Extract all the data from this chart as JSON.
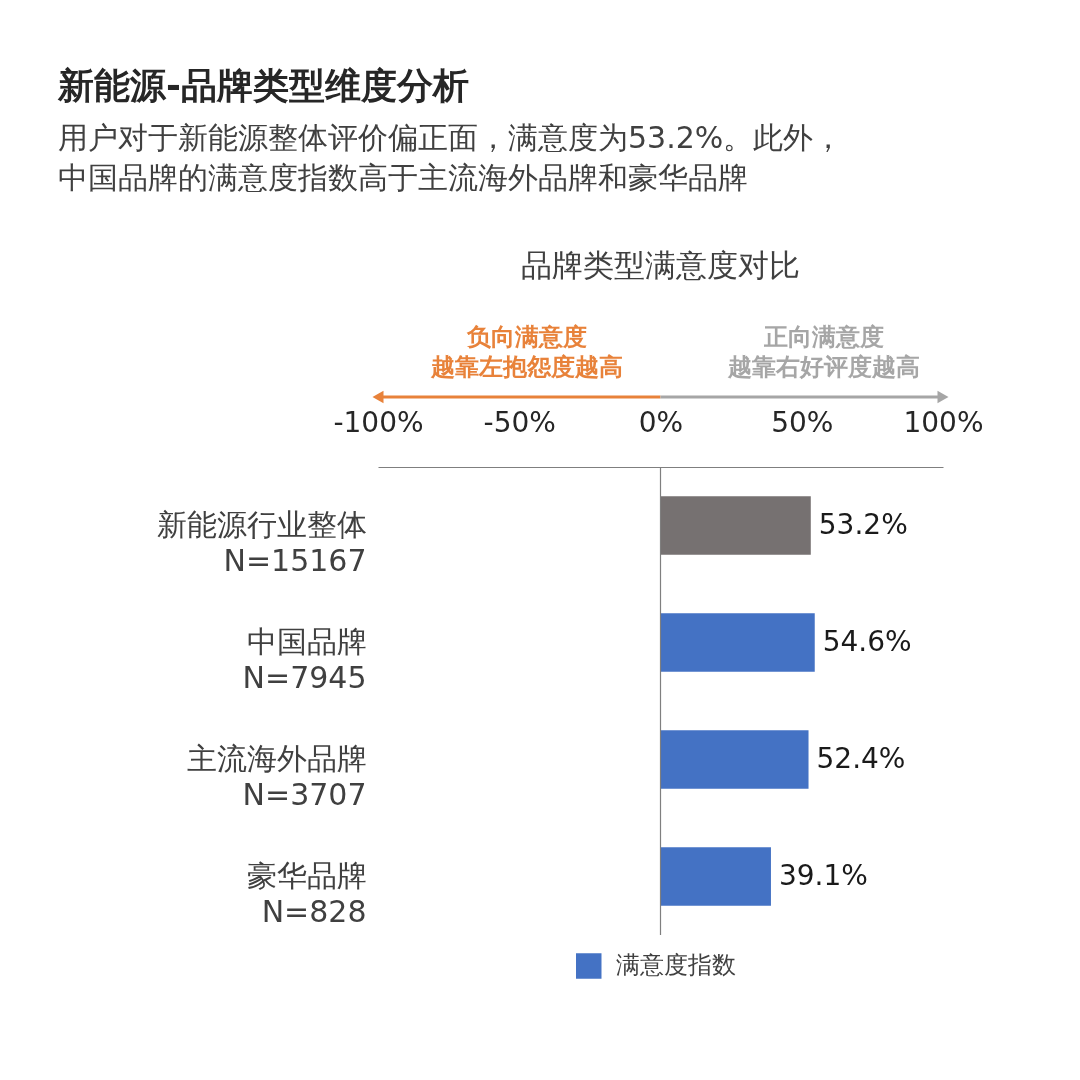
{
  "chart_data": {
    "type": "bar",
    "orientation": "horizontal",
    "title": "新能源-品牌类型维度分析",
    "subtitle": "用户对于新能源整体评价偏正面，满意度为53.2%。此外，中国品牌的满意度指数高于主流海外品牌和豪华品牌",
    "annotations": [
      "品牌类型满意度对比",
      "负向满意度",
      "越靠左抱怨度越高",
      "正向满意度",
      "越靠右好评度越高"
    ],
    "categories": [
      "新能源行业整体\nN=15167",
      "中国品牌\nN=7945",
      "主流海外品牌\nN=3707",
      "豪华品牌\nN=828"
    ],
    "series": [
      {
        "name": "满意度指数",
        "color": "#4472c4",
        "colors": [
          "#767171",
          "#4472c4",
          "#4472c4",
          "#4472c4"
        ],
        "values": [
          53.2,
          54.6,
          52.4,
          39.1
        ],
        "value_labels": [
          "53.2%",
          "54.6%",
          "52.4%",
          "39.1%"
        ]
      }
    ],
    "xlim": [
      -100,
      100
    ],
    "xticks": [
      {
        "value": -100,
        "label": "-100%"
      },
      {
        "value": -50,
        "label": "-50%"
      },
      {
        "value": 0,
        "label": "0%"
      },
      {
        "value": 50,
        "label": "50%"
      },
      {
        "value": 100,
        "label": "100%"
      }
    ],
    "legend": "bottom"
  }
}
